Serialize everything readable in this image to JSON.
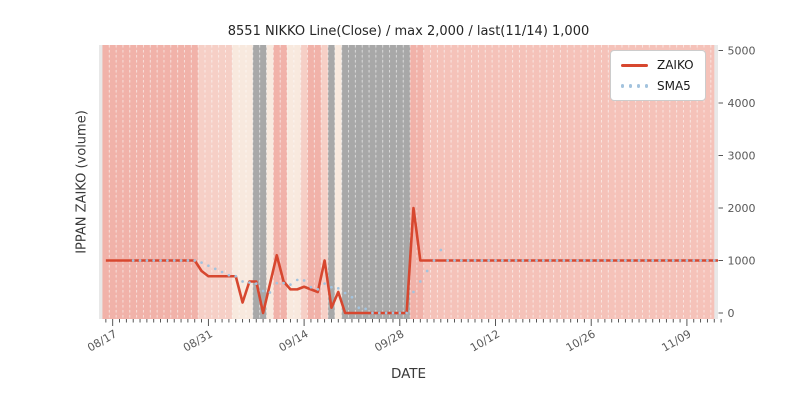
{
  "chart_data": {
    "type": "line",
    "title": "8551 NIKKO Line(Close) / max 2,000 / last(11/14) 1,000",
    "xlabel": "DATE",
    "ylabel": "IPPAN ZAIKO (volume)",
    "y_ticks": [
      0,
      1000,
      2000,
      3000,
      4000,
      5000
    ],
    "ylim": [
      -115,
      5105
    ],
    "grid": false,
    "legend_position": "upper right",
    "x_tick_labels": [
      "08/17",
      "08/31",
      "09/14",
      "09/28",
      "10/12",
      "10/26",
      "11/09"
    ],
    "dates": [
      "08/16",
      "08/17",
      "08/18",
      "08/19",
      "08/20",
      "08/21",
      "08/22",
      "08/23",
      "08/24",
      "08/25",
      "08/26",
      "08/27",
      "08/28",
      "08/29",
      "08/30",
      "08/31",
      "09/01",
      "09/02",
      "09/03",
      "09/04",
      "09/05",
      "09/06",
      "09/07",
      "09/08",
      "09/09",
      "09/10",
      "09/11",
      "09/12",
      "09/13",
      "09/14",
      "09/15",
      "09/16",
      "09/17",
      "09/18",
      "09/19",
      "09/20",
      "09/21",
      "09/22",
      "09/23",
      "09/24",
      "09/25",
      "09/26",
      "09/27",
      "09/28",
      "09/29",
      "09/30",
      "10/01",
      "10/02",
      "10/03",
      "10/04",
      "10/05",
      "10/06",
      "10/07",
      "10/08",
      "10/09",
      "10/10",
      "10/11",
      "10/12",
      "10/13",
      "10/14",
      "10/15",
      "10/16",
      "10/17",
      "10/18",
      "10/19",
      "10/20",
      "10/21",
      "10/22",
      "10/23",
      "10/24",
      "10/25",
      "10/26",
      "10/27",
      "10/28",
      "10/29",
      "10/30",
      "10/31",
      "11/01",
      "11/02",
      "11/03",
      "11/04",
      "11/05",
      "11/06",
      "11/07",
      "11/08",
      "11/09",
      "11/10",
      "11/11",
      "11/12",
      "11/13",
      "11/14"
    ],
    "series": [
      {
        "name": "ZAIKO",
        "color": "#d7472f",
        "style": "solid",
        "values": [
          1000,
          1000,
          1000,
          1000,
          1000,
          1000,
          1000,
          1000,
          1000,
          1000,
          1000,
          1000,
          1000,
          1000,
          800,
          700,
          700,
          700,
          700,
          700,
          200,
          600,
          600,
          0,
          550,
          1100,
          600,
          450,
          450,
          500,
          450,
          400,
          1000,
          100,
          400,
          0,
          0,
          0,
          0,
          0,
          0,
          0,
          0,
          0,
          0,
          2000,
          1000,
          1000,
          1000,
          1000,
          1000,
          1000,
          1000,
          1000,
          1000,
          1000,
          1000,
          1000,
          1000,
          1000,
          1000,
          1000,
          1000,
          1000,
          1000,
          1000,
          1000,
          1000,
          1000,
          1000,
          1000,
          1000,
          1000,
          1000,
          1000,
          1000,
          1000,
          1000,
          1000,
          1000,
          1000,
          1000,
          1000,
          1000,
          1000,
          1000,
          1000,
          1000,
          1000,
          1000,
          1000
        ]
      },
      {
        "name": "SMA5",
        "color": "#a3c3de",
        "style": "dotted",
        "values": [
          null,
          null,
          null,
          null,
          1000,
          1000,
          1000,
          1000,
          1000,
          1000,
          1000,
          1000,
          1000,
          1000,
          960,
          900,
          840,
          780,
          720,
          700,
          600,
          580,
          560,
          420,
          390,
          570,
          570,
          540,
          630,
          620,
          490,
          450,
          560,
          490,
          470,
          380,
          300,
          100,
          80,
          0,
          0,
          0,
          0,
          0,
          0,
          400,
          600,
          800,
          1000,
          1200,
          1000,
          1000,
          1000,
          1000,
          1000,
          1000,
          1000,
          1000,
          1000,
          1000,
          1000,
          1000,
          1000,
          1000,
          1000,
          1000,
          1000,
          1000,
          1000,
          1000,
          1000,
          1000,
          1000,
          1000,
          1000,
          1000,
          1000,
          1000,
          1000,
          1000,
          1000,
          1000,
          1000,
          1000,
          1000,
          1000,
          1000,
          1000,
          1000,
          1000,
          1000
        ]
      }
    ],
    "day_band_palette": {
      "s": "#f1b2a9",
      "S": "#f5c2b9",
      "p": "#f6cfc6",
      "c": "#f8e9de",
      "g": "#a8a8a8",
      "edge": "#e8e8e8"
    },
    "day_band_colors": [
      "s",
      "s",
      "s",
      "s",
      "s",
      "s",
      "s",
      "s",
      "s",
      "s",
      "s",
      "s",
      "s",
      "s",
      "p",
      "p",
      "p",
      "p",
      "p",
      "c",
      "c",
      "c",
      "g",
      "g",
      "c",
      "s",
      "s",
      "c",
      "c",
      "p",
      "s",
      "s",
      "p",
      "g",
      "c",
      "g",
      "g",
      "g",
      "g",
      "g",
      "g",
      "g",
      "g",
      "g",
      "g",
      "s",
      "s",
      "S",
      "S",
      "S",
      "S",
      "S",
      "S",
      "S",
      "S",
      "S",
      "S",
      "S",
      "S",
      "S",
      "S",
      "S",
      "S",
      "S",
      "S",
      "S",
      "S",
      "S",
      "S",
      "S",
      "S",
      "S",
      "S",
      "S",
      "S",
      "S",
      "S",
      "S",
      "S",
      "S",
      "S",
      "S",
      "S",
      "S",
      "S",
      "S",
      "S",
      "S",
      "S",
      "S",
      "S"
    ]
  }
}
